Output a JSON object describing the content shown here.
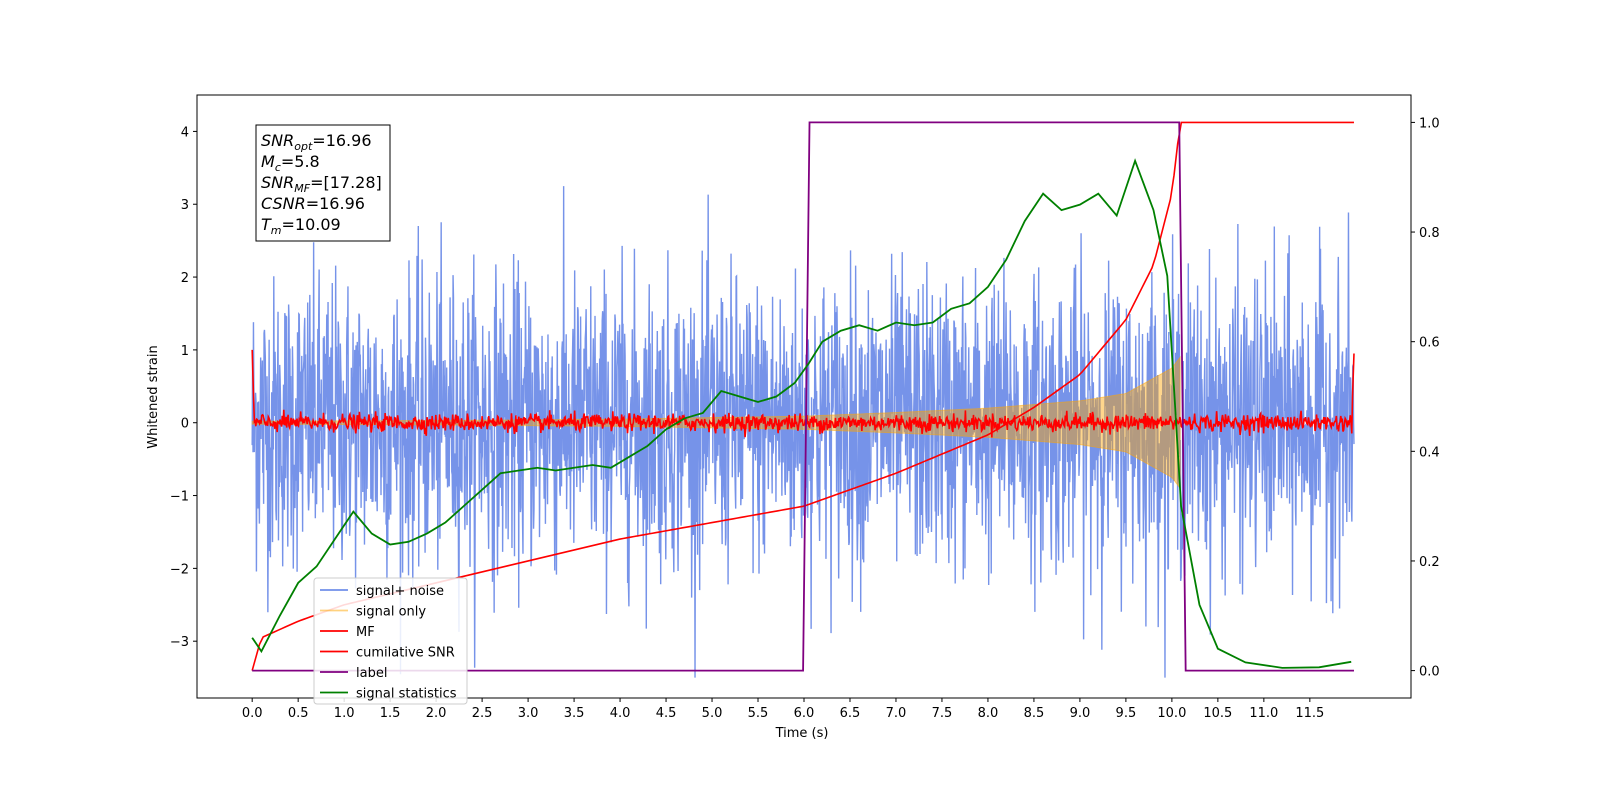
{
  "chart_data": {
    "type": "line",
    "xlabel": "Time (s)",
    "ylabel": "Whitened strain",
    "xlim": [
      -0.6,
      12.6
    ],
    "ylim": [
      -3.78,
      4.5
    ],
    "y2lim": [
      -0.05,
      1.05
    ],
    "x_ticks": [
      "0.0",
      "0.5",
      "1.0",
      "1.5",
      "2.0",
      "2.5",
      "3.0",
      "3.5",
      "4.0",
      "4.5",
      "5.0",
      "5.5",
      "6.0",
      "6.5",
      "7.0",
      "7.5",
      "8.0",
      "8.5",
      "9.0",
      "9.5",
      "10.0",
      "10.5",
      "11.0",
      "11.5"
    ],
    "y_ticks": [
      "−3",
      "−2",
      "−1",
      "0",
      "1",
      "2",
      "3",
      "4"
    ],
    "y2_ticks": [
      "0.0",
      "0.2",
      "0.4",
      "0.6",
      "0.8",
      "1.0"
    ],
    "annotation": [
      {
        "sym": "SNR",
        "sub": "opt",
        "text": "=16.96"
      },
      {
        "sym": "M",
        "sub": "c",
        "text": "=5.8"
      },
      {
        "sym": "SNR",
        "sub": "MF",
        "text": "=[17.28]"
      },
      {
        "sym": "CSNR",
        "sub": "",
        "text": "=16.96"
      },
      {
        "sym": "T",
        "sub": "m",
        "text": "=10.09"
      }
    ],
    "legend_position": "lower-left",
    "series": [
      {
        "name": "signal+ noise",
        "color": "#4169E1",
        "axis": "left",
        "amplitude": 1.6,
        "x_range": [
          0.0,
          11.98
        ]
      },
      {
        "name": "signal only",
        "color": "#FFA500",
        "axis": "left",
        "envelope": {
          "x": [
            0,
            2,
            4,
            6,
            7,
            8,
            9,
            9.5,
            10.0,
            10.09
          ],
          "amp": [
            0.02,
            0.03,
            0.05,
            0.09,
            0.14,
            0.2,
            0.3,
            0.4,
            0.75,
            0.9
          ]
        }
      },
      {
        "name": "MF",
        "color": "#FF0000",
        "axis": "left",
        "amplitude": 0.06,
        "x_range": [
          0.0,
          11.98
        ]
      },
      {
        "name": "cumilative SNR",
        "color": "#FF0000",
        "axis": "right",
        "x": [
          0,
          0.1,
          0.5,
          1,
          2,
          3,
          4,
          5,
          6,
          7,
          8,
          8.5,
          9,
          9.5,
          9.8,
          10,
          10.09,
          11.98
        ],
        "y": [
          0,
          0.06,
          0.09,
          0.12,
          0.16,
          0.2,
          0.24,
          0.27,
          0.3,
          0.36,
          0.43,
          0.48,
          0.54,
          0.64,
          0.74,
          0.87,
          1.0,
          1.0
        ]
      },
      {
        "name": "label",
        "color": "#800080",
        "axis": "right",
        "x": [
          0,
          5.99,
          6.06,
          10.08,
          10.15,
          11.98
        ],
        "y": [
          0,
          0,
          1,
          1,
          0,
          0
        ]
      },
      {
        "name": "signal statistics",
        "color": "#008000",
        "axis": "right",
        "x": [
          0,
          0.1,
          0.3,
          0.5,
          0.7,
          0.9,
          1.1,
          1.3,
          1.5,
          1.7,
          1.9,
          2.1,
          2.3,
          2.5,
          2.7,
          2.9,
          3.1,
          3.3,
          3.5,
          3.7,
          3.9,
          4.1,
          4.3,
          4.5,
          4.7,
          4.9,
          5.1,
          5.3,
          5.5,
          5.7,
          5.9,
          6.05,
          6.2,
          6.4,
          6.6,
          6.8,
          7.0,
          7.2,
          7.4,
          7.6,
          7.8,
          8.0,
          8.2,
          8.4,
          8.6,
          8.8,
          9.0,
          9.2,
          9.4,
          9.6,
          9.8,
          9.95,
          10.1,
          10.3,
          10.5,
          10.8,
          11.2,
          11.6,
          11.95
        ],
        "y": [
          0.06,
          0.035,
          0.1,
          0.16,
          0.19,
          0.24,
          0.29,
          0.25,
          0.23,
          0.235,
          0.25,
          0.27,
          0.3,
          0.33,
          0.36,
          0.365,
          0.37,
          0.365,
          0.37,
          0.375,
          0.37,
          0.39,
          0.41,
          0.44,
          0.46,
          0.47,
          0.51,
          0.5,
          0.49,
          0.5,
          0.525,
          0.56,
          0.6,
          0.62,
          0.63,
          0.62,
          0.635,
          0.63,
          0.635,
          0.66,
          0.67,
          0.7,
          0.75,
          0.82,
          0.87,
          0.84,
          0.85,
          0.87,
          0.83,
          0.93,
          0.84,
          0.72,
          0.3,
          0.12,
          0.04,
          0.015,
          0.005,
          0.006,
          0.016
        ]
      }
    ]
  }
}
